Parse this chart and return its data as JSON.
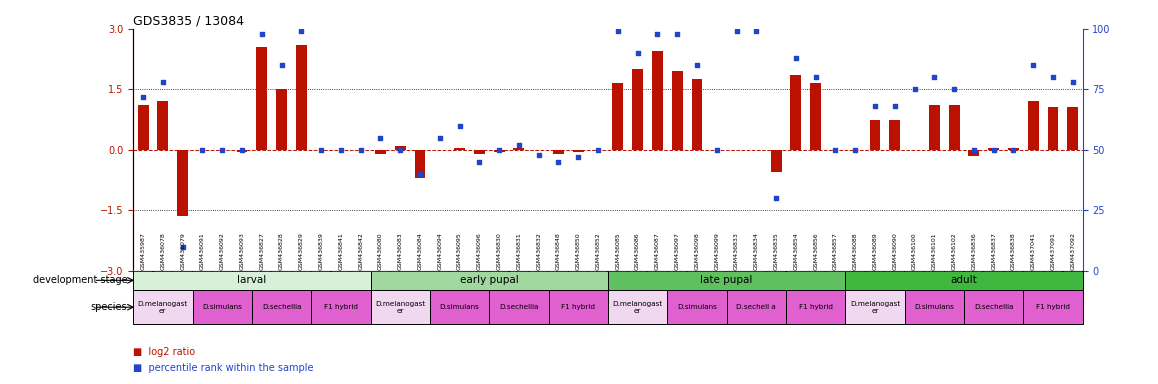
{
  "title": "GDS3835 / 13084",
  "sample_ids": [
    "GSM435987",
    "GSM436078",
    "GSM436079",
    "GSM436091",
    "GSM436092",
    "GSM436093",
    "GSM436827",
    "GSM436828",
    "GSM436829",
    "GSM436839",
    "GSM436841",
    "GSM436842",
    "GSM436080",
    "GSM436083",
    "GSM436084",
    "GSM436094",
    "GSM436095",
    "GSM436096",
    "GSM436830",
    "GSM436831",
    "GSM436832",
    "GSM436848",
    "GSM436850",
    "GSM436852",
    "GSM436085",
    "GSM436086",
    "GSM436087",
    "GSM436097",
    "GSM436098",
    "GSM436099",
    "GSM436833",
    "GSM436834",
    "GSM436835",
    "GSM436854",
    "GSM436856",
    "GSM436857",
    "GSM436088",
    "GSM436089",
    "GSM436090",
    "GSM436100",
    "GSM436101",
    "GSM436102",
    "GSM436836",
    "GSM436837",
    "GSM436838",
    "GSM437041",
    "GSM437091",
    "GSM437092"
  ],
  "log2_ratio": [
    1.1,
    1.2,
    -1.65,
    0.0,
    0.0,
    -0.05,
    2.55,
    1.5,
    2.6,
    0.0,
    0.0,
    0.0,
    -0.1,
    0.1,
    -0.7,
    0.0,
    0.05,
    -0.1,
    -0.05,
    0.05,
    0.0,
    -0.1,
    -0.05,
    0.0,
    1.65,
    2.0,
    2.45,
    1.95,
    1.75,
    0.0,
    0.0,
    0.0,
    -0.55,
    1.85,
    1.65,
    0.0,
    0.0,
    0.75,
    0.75,
    0.0,
    1.1,
    1.1,
    -0.15,
    0.05,
    0.05,
    1.2,
    1.05,
    1.05
  ],
  "percentile": [
    72,
    78,
    10,
    50,
    50,
    50,
    98,
    85,
    99,
    50,
    50,
    50,
    55,
    50,
    40,
    55,
    60,
    45,
    50,
    52,
    48,
    45,
    47,
    50,
    99,
    90,
    98,
    98,
    85,
    50,
    99,
    99,
    30,
    88,
    80,
    50,
    50,
    68,
    68,
    75,
    80,
    75,
    50,
    50,
    50,
    85,
    80,
    78
  ],
  "dev_stages": [
    {
      "label": "larval",
      "start": 0,
      "end": 12,
      "color": "#d8f0d8"
    },
    {
      "label": "early pupal",
      "start": 12,
      "end": 24,
      "color": "#a0d8a0"
    },
    {
      "label": "late pupal",
      "start": 24,
      "end": 36,
      "color": "#60c060"
    },
    {
      "label": "adult",
      "start": 36,
      "end": 48,
      "color": "#40b840"
    }
  ],
  "species_groups": [
    {
      "label": "D.melanogast\ner",
      "start": 0,
      "end": 3,
      "color": "#f0d8f0"
    },
    {
      "label": "D.simulans",
      "start": 3,
      "end": 6,
      "color": "#e060d0"
    },
    {
      "label": "D.sechellia",
      "start": 6,
      "end": 9,
      "color": "#e060d0"
    },
    {
      "label": "F1 hybrid",
      "start": 9,
      "end": 12,
      "color": "#e060d0"
    },
    {
      "label": "D.melanogast\ner",
      "start": 12,
      "end": 15,
      "color": "#f0d8f0"
    },
    {
      "label": "D.simulans",
      "start": 15,
      "end": 18,
      "color": "#e060d0"
    },
    {
      "label": "D.sechellia",
      "start": 18,
      "end": 21,
      "color": "#e060d0"
    },
    {
      "label": "F1 hybrid",
      "start": 21,
      "end": 24,
      "color": "#e060d0"
    },
    {
      "label": "D.melanogast\ner",
      "start": 24,
      "end": 27,
      "color": "#f0d8f0"
    },
    {
      "label": "D.simulans",
      "start": 27,
      "end": 30,
      "color": "#e060d0"
    },
    {
      "label": "D.sechell a",
      "start": 30,
      "end": 33,
      "color": "#e060d0"
    },
    {
      "label": "F1 hybrid",
      "start": 33,
      "end": 36,
      "color": "#e060d0"
    },
    {
      "label": "D.melanogast\ner",
      "start": 36,
      "end": 39,
      "color": "#f0d8f0"
    },
    {
      "label": "D.simulans",
      "start": 39,
      "end": 42,
      "color": "#e060d0"
    },
    {
      "label": "D.sechellia",
      "start": 42,
      "end": 45,
      "color": "#e060d0"
    },
    {
      "label": "F1 hybrid",
      "start": 45,
      "end": 48,
      "color": "#e060d0"
    }
  ],
  "bar_color": "#bb1100",
  "dot_color": "#2244cc",
  "ylim_left": [
    -3,
    3
  ],
  "ylim_right": [
    0,
    100
  ],
  "yticks_left": [
    -3,
    -1.5,
    0,
    1.5,
    3
  ],
  "yticks_right": [
    0,
    25,
    50,
    75,
    100
  ],
  "dotted_lines": [
    1.5,
    -1.5
  ],
  "bar_width": 0.55,
  "xticklabel_bg": "#d8d8d8"
}
